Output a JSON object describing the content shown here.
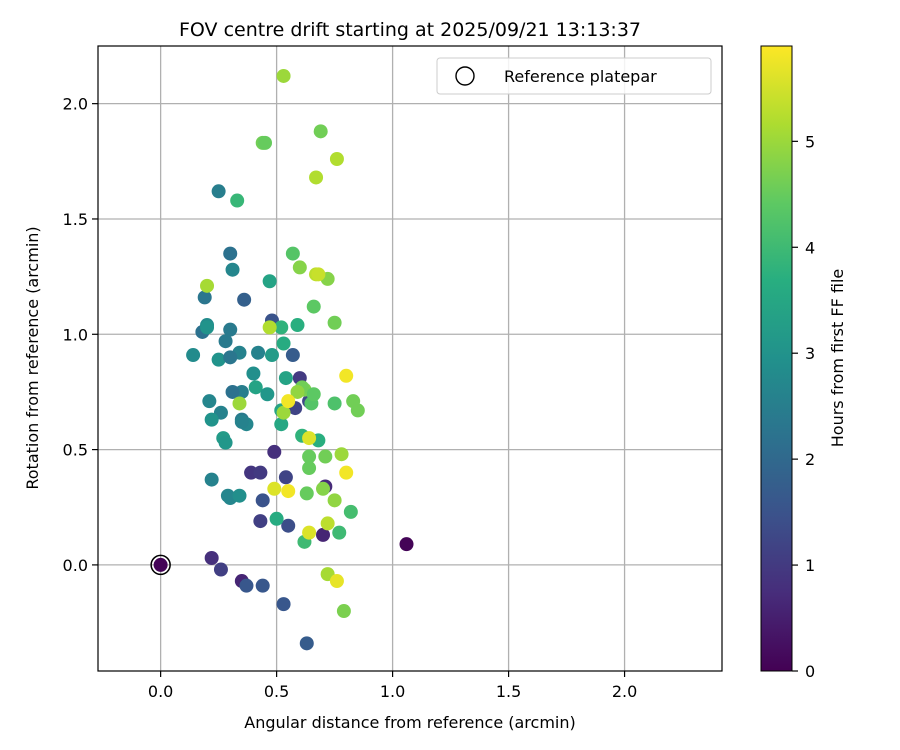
{
  "chart_data": {
    "type": "scatter",
    "title": "FOV centre drift starting at 2025/09/21 13:13:37",
    "xlabel": "Angular distance from reference (arcmin)",
    "ylabel": "Rotation from reference (arcmin)",
    "xlim": [
      -0.27,
      2.42
    ],
    "ylim": [
      -0.46,
      2.25
    ],
    "xticks": [
      0.0,
      0.5,
      1.0,
      1.5,
      2.0
    ],
    "yticks": [
      0.0,
      0.5,
      1.0,
      1.5,
      2.0
    ],
    "xtick_labels": [
      "0.0",
      "0.5",
      "1.0",
      "1.5",
      "2.0"
    ],
    "ytick_labels": [
      "0.0",
      "0.5",
      "1.0",
      "1.5",
      "2.0"
    ],
    "grid": true,
    "legend": {
      "position": "top-right",
      "entries": [
        "Reference platepar"
      ]
    },
    "reference_point": {
      "x": 0.0,
      "y": 0.0,
      "label": "Reference platepar"
    },
    "colorbar": {
      "label": "Hours from first FF file",
      "min": 0,
      "max": 5.9,
      "ticks": [
        0,
        1,
        2,
        3,
        4,
        5
      ],
      "tick_labels": [
        "0",
        "1",
        "2",
        "3",
        "4",
        "5"
      ],
      "colormap": "viridis"
    },
    "series": [
      {
        "name": "FOV centre drift",
        "x": [
          0.0,
          1.06,
          0.22,
          0.26,
          0.35,
          0.37,
          0.44,
          0.53,
          0.63,
          0.49,
          0.39,
          0.43,
          0.54,
          0.44,
          0.43,
          0.55,
          0.7,
          0.71,
          0.6,
          0.58,
          0.64,
          0.57,
          0.48,
          0.36,
          0.3,
          0.42,
          0.31,
          0.19,
          0.2,
          0.25,
          0.25,
          0.34,
          0.3,
          0.28,
          0.35,
          0.26,
          0.21,
          0.22,
          0.27,
          0.28,
          0.22,
          0.4,
          0.41,
          0.3,
          0.29,
          0.35,
          0.34,
          0.18,
          0.14,
          0.2,
          0.3,
          0.31,
          0.37,
          0.33,
          0.35,
          0.47,
          0.46,
          0.48,
          0.5,
          0.52,
          0.54,
          0.61,
          0.68,
          0.65,
          0.62,
          0.64,
          0.66,
          0.59,
          0.52,
          0.44,
          0.57,
          0.53,
          0.52,
          0.6,
          0.63,
          0.64,
          0.69,
          0.71,
          0.75,
          0.77,
          0.82,
          0.85,
          0.83,
          0.78,
          0.72,
          0.7,
          0.67,
          0.61,
          0.72,
          0.76,
          0.79,
          0.34,
          0.2,
          0.47,
          0.53,
          0.59,
          0.62,
          0.75,
          0.72,
          0.67,
          0.45,
          0.68,
          0.53,
          0.76,
          0.8,
          0.55,
          0.49,
          0.64,
          0.8,
          0.64,
          0.75,
          0.66,
          0.55
        ],
        "y": [
          0.0,
          0.09,
          0.03,
          -0.02,
          -0.07,
          -0.09,
          -0.09,
          -0.17,
          -0.34,
          0.49,
          0.4,
          0.4,
          0.38,
          0.28,
          0.19,
          0.17,
          0.13,
          0.34,
          0.81,
          0.68,
          0.71,
          0.91,
          1.06,
          1.15,
          1.35,
          0.92,
          1.28,
          1.16,
          1.04,
          1.62,
          0.89,
          0.92,
          0.9,
          0.97,
          0.75,
          0.66,
          0.71,
          0.63,
          0.55,
          0.53,
          0.37,
          0.83,
          0.77,
          0.29,
          0.3,
          0.63,
          0.3,
          1.01,
          0.91,
          1.03,
          1.02,
          0.75,
          0.61,
          1.58,
          0.62,
          1.23,
          0.74,
          0.91,
          0.2,
          0.67,
          0.81,
          0.56,
          0.54,
          0.7,
          0.76,
          0.47,
          1.12,
          1.04,
          1.03,
          1.83,
          1.35,
          0.96,
          0.61,
          1.29,
          0.31,
          0.42,
          1.88,
          0.47,
          0.28,
          0.14,
          0.23,
          0.67,
          0.71,
          0.48,
          0.18,
          0.33,
          1.26,
          0.77,
          1.24,
          1.76,
          -0.2,
          0.7,
          1.21,
          1.03,
          2.12,
          0.75,
          0.1,
          1.05,
          -0.04,
          1.68,
          1.83,
          1.26,
          0.66,
          -0.07,
          0.82,
          0.71,
          0.33,
          0.55,
          0.4,
          0.14,
          0.7,
          0.74,
          0.32
        ],
        "c": [
          0.05,
          0.05,
          0.8,
          1.1,
          0.6,
          1.6,
          1.6,
          1.6,
          1.7,
          0.8,
          0.9,
          1.0,
          1.2,
          1.5,
          1.1,
          1.4,
          0.6,
          0.7,
          1.0,
          1.2,
          1.3,
          1.7,
          1.5,
          1.8,
          2.2,
          2.6,
          2.7,
          2.3,
          2.8,
          2.5,
          3.0,
          2.6,
          2.3,
          2.4,
          2.5,
          2.6,
          2.7,
          3.0,
          3.2,
          3.1,
          2.6,
          2.9,
          3.4,
          2.7,
          2.7,
          2.4,
          2.9,
          2.2,
          2.8,
          3.0,
          2.4,
          2.2,
          2.7,
          3.9,
          2.6,
          3.4,
          3.1,
          3.2,
          3.6,
          3.4,
          3.4,
          3.8,
          3.7,
          4.3,
          4.7,
          4.5,
          4.4,
          3.7,
          3.8,
          4.6,
          4.3,
          3.6,
          3.5,
          4.8,
          4.5,
          4.5,
          4.6,
          4.6,
          4.9,
          4.0,
          4.1,
          4.6,
          4.6,
          5.0,
          5.3,
          4.8,
          5.3,
          4.6,
          4.8,
          5.2,
          4.7,
          5.0,
          5.1,
          5.2,
          5.0,
          4.9,
          4.0,
          4.6,
          5.1,
          5.2,
          4.5,
          5.4,
          5.0,
          5.7,
          5.8,
          5.8,
          5.6,
          5.6,
          5.8,
          5.6,
          4.2,
          4.4,
          5.8
        ]
      }
    ]
  }
}
